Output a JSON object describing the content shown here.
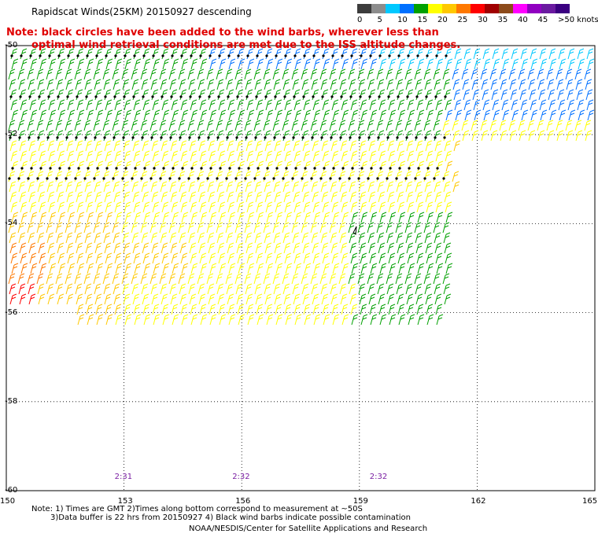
{
  "title": "Rapidscat Winds(25KM) 20150927 descending",
  "note": {
    "line1": "Note: black circles have been added to the wind barbs, wherever less than",
    "line2": "optimal wind retrieval conditions are met due to the ISS altitude changes."
  },
  "colorbar": {
    "labels": [
      "0",
      "5",
      "10",
      "15",
      "20",
      "25",
      "30",
      "35",
      "40",
      "45",
      ">50 knots"
    ],
    "colors": [
      "#3c3c3c",
      "#8c8c8c",
      "#00c8ff",
      "#0070ff",
      "#00a000",
      "#ffff00",
      "#ffc800",
      "#ff7800",
      "#ff0000",
      "#a00000",
      "#8c4a1a",
      "#ff00ff",
      "#9000c0",
      "#6a1aa0",
      "#3a0080"
    ]
  },
  "map": {
    "y_ticks": [
      "-50",
      "-52",
      "-54",
      "-56",
      "-58",
      "-60"
    ],
    "x_ticks": [
      "150",
      "153",
      "156",
      "159",
      "162",
      "165"
    ],
    "lon_range": [
      150,
      165
    ],
    "lat_range": [
      -60,
      -50
    ],
    "times": [
      "2:31",
      "2:32",
      "2:32"
    ],
    "time_lons": [
      153,
      156,
      159.5
    ]
  },
  "footer": {
    "line1": "Note: 1) Times are GMT 2)Times along bottom correspond to measurement at ~50S",
    "line2": "3)Data buffer is 22 hrs from 20150927 4) Black wind barbs indicate possible contamination",
    "line3": "NOAA/NESDIS/Center for Satellite Applications and Research"
  }
}
